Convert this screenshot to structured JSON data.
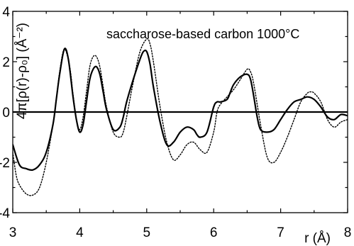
{
  "chart_data": {
    "type": "line",
    "title": "",
    "annotation": "saccharose-based carbon 1000°C",
    "xlabel": "r (Å)",
    "ylabel": "4π[ρ(r)-ρ₀] (Å⁻²)",
    "xlim": [
      3,
      8
    ],
    "ylim": [
      -4,
      4
    ],
    "xticks": [
      3,
      4,
      5,
      6,
      7,
      8
    ],
    "yticks": [
      -4,
      -2,
      0,
      2,
      4
    ],
    "zero_line": true,
    "grid": false,
    "legend": "none",
    "series": [
      {
        "style": "solid",
        "color": "#000000",
        "x": [
          3.0,
          3.1,
          3.2,
          3.3,
          3.4,
          3.5,
          3.6,
          3.65,
          3.7,
          3.77,
          3.83,
          3.9,
          3.95,
          4.0,
          4.05,
          4.1,
          4.15,
          4.2,
          4.25,
          4.3,
          4.35,
          4.4,
          4.5,
          4.6,
          4.65,
          4.7,
          4.8,
          4.9,
          4.95,
          5.0,
          5.05,
          5.1,
          5.2,
          5.3,
          5.4,
          5.5,
          5.6,
          5.7,
          5.75,
          5.8,
          5.9,
          6.0,
          6.05,
          6.1,
          6.2,
          6.25,
          6.3,
          6.4,
          6.5,
          6.55,
          6.6,
          6.65,
          6.7,
          6.8,
          6.9,
          7.0,
          7.1,
          7.2,
          7.3,
          7.4,
          7.5,
          7.6,
          7.7,
          7.8,
          7.9,
          8.0
        ],
        "y": [
          -1.3,
          -2.1,
          -2.25,
          -2.3,
          -2.1,
          -1.6,
          -0.5,
          0.5,
          1.5,
          2.5,
          2.1,
          0.6,
          -0.3,
          -0.8,
          -0.5,
          0.4,
          1.3,
          1.7,
          1.8,
          1.5,
          0.8,
          0.1,
          -0.7,
          -0.6,
          -0.2,
          0.4,
          1.3,
          2.1,
          2.4,
          2.4,
          1.9,
          1.0,
          -0.4,
          -1.3,
          -1.2,
          -0.8,
          -0.6,
          -0.7,
          -0.9,
          -1.0,
          -0.8,
          0.2,
          0.4,
          0.4,
          0.5,
          0.8,
          1.1,
          1.4,
          1.5,
          1.3,
          0.6,
          -0.2,
          -0.7,
          -0.8,
          -0.7,
          -0.3,
          0.1,
          0.4,
          0.5,
          0.6,
          0.5,
          0.2,
          -0.2,
          -0.3,
          -0.1,
          -0.15
        ]
      },
      {
        "style": "dotted",
        "color": "#000000",
        "x": [
          3.0,
          3.05,
          3.1,
          3.2,
          3.3,
          3.4,
          3.5,
          3.6,
          3.65,
          3.7,
          3.77,
          3.85,
          3.9,
          3.95,
          4.0,
          4.05,
          4.1,
          4.15,
          4.2,
          4.25,
          4.3,
          4.35,
          4.4,
          4.5,
          4.6,
          4.65,
          4.7,
          4.8,
          4.9,
          5.0,
          5.05,
          5.1,
          5.2,
          5.3,
          5.4,
          5.5,
          5.6,
          5.7,
          5.8,
          5.9,
          6.0,
          6.05,
          6.1,
          6.2,
          6.3,
          6.4,
          6.5,
          6.55,
          6.6,
          6.7,
          6.8,
          6.9,
          7.0,
          7.1,
          7.2,
          7.3,
          7.4,
          7.45,
          7.5,
          7.6,
          7.7,
          7.8,
          7.9,
          8.0
        ],
        "y": [
          -1.6,
          -2.5,
          -2.9,
          -3.25,
          -3.3,
          -3.0,
          -2.0,
          -0.5,
          0.5,
          1.6,
          2.5,
          1.8,
          0.7,
          -0.3,
          -0.7,
          -0.2,
          0.8,
          1.8,
          2.2,
          2.2,
          1.8,
          1.0,
          0.2,
          -0.8,
          -1.0,
          -0.8,
          -0.2,
          1.2,
          2.4,
          2.9,
          2.7,
          2.0,
          0.2,
          -1.2,
          -1.9,
          -1.7,
          -1.3,
          -1.2,
          -1.5,
          -1.6,
          -0.8,
          0.0,
          0.3,
          0.6,
          0.9,
          1.3,
          1.7,
          1.6,
          1.1,
          -0.5,
          -1.8,
          -2.0,
          -1.6,
          -1.0,
          -0.3,
          0.4,
          0.75,
          0.8,
          0.75,
          0.4,
          -0.3,
          -0.6,
          -0.4,
          -0.3
        ]
      }
    ]
  }
}
